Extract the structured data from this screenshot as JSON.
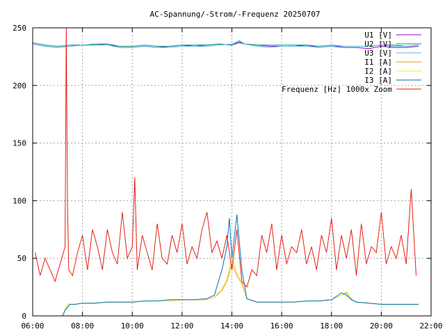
{
  "chart_data": {
    "type": "line",
    "title": "AC-Spannung/-Strom/-Frequenz 20250707",
    "xlabel": "",
    "ylabel": "",
    "x_ticks": [
      "06:00",
      "08:00",
      "10:00",
      "12:00",
      "14:00",
      "16:00",
      "18:00",
      "20:00",
      "22:00"
    ],
    "y_ticks": [
      "0",
      "50",
      "100",
      "150",
      "200",
      "250"
    ],
    "xlim_hours": [
      6,
      22
    ],
    "ylim": [
      0,
      250
    ],
    "grid": true,
    "legend_position": "top-right",
    "series": [
      {
        "name": "U1 [V]",
        "color": "#9400d3",
        "x": [
          6.0,
          6.5,
          7.0,
          7.5,
          8.0,
          8.5,
          9.0,
          9.5,
          10.0,
          10.5,
          11.0,
          11.5,
          12.0,
          12.5,
          13.0,
          13.5,
          14.0,
          14.3,
          14.5,
          15.0,
          15.5,
          16.0,
          16.5,
          17.0,
          17.5,
          18.0,
          18.5,
          19.0,
          19.5,
          20.0,
          20.5,
          21.0,
          21.5
        ],
        "values": [
          236,
          234,
          233,
          234,
          235,
          235,
          236,
          233,
          233,
          234,
          233,
          234,
          235,
          234,
          235,
          236,
          235,
          238,
          236,
          235,
          234,
          234,
          234,
          235,
          233,
          234,
          233,
          233,
          232,
          234,
          233,
          233,
          234
        ]
      },
      {
        "name": "U2 [V]",
        "color": "#009e73",
        "x": [
          6.0,
          6.5,
          7.0,
          7.5,
          8.0,
          8.5,
          9.0,
          9.5,
          10.0,
          10.5,
          11.0,
          11.5,
          12.0,
          12.5,
          13.0,
          13.5,
          14.0,
          14.3,
          14.5,
          15.0,
          15.5,
          16.0,
          16.5,
          17.0,
          17.5,
          18.0,
          18.5,
          19.0,
          19.5,
          20.0,
          20.5,
          21.0,
          21.5
        ],
        "values": [
          237,
          235,
          234,
          235,
          235,
          236,
          236,
          234,
          234,
          235,
          234,
          234,
          235,
          235,
          235,
          236,
          235,
          237,
          236,
          235,
          235,
          235,
          235,
          235,
          234,
          235,
          234,
          234,
          234,
          235,
          235,
          234,
          235
        ]
      },
      {
        "name": "U3 [V]",
        "color": "#56b4e9",
        "x": [
          6.0,
          6.5,
          7.0,
          7.5,
          8.0,
          8.5,
          9.0,
          9.5,
          10.0,
          10.5,
          11.0,
          11.5,
          12.0,
          12.5,
          13.0,
          13.5,
          14.0,
          14.3,
          14.5,
          15.0,
          15.5,
          16.0,
          16.5,
          17.0,
          17.5,
          18.0,
          18.5,
          19.0,
          19.5,
          20.0,
          20.5,
          21.0,
          21.5
        ],
        "values": [
          236,
          234,
          233,
          234,
          235,
          235,
          235,
          233,
          233,
          234,
          233,
          233,
          234,
          234,
          234,
          235,
          236,
          239,
          236,
          234,
          233,
          234,
          234,
          234,
          233,
          234,
          234,
          234,
          234,
          235,
          234,
          234,
          235
        ]
      },
      {
        "name": "I1 [A]",
        "color": "#e69f00",
        "x": [
          7.0,
          7.2,
          7.4,
          7.5,
          7.7,
          8.0,
          8.5,
          9.0,
          9.5,
          10.0,
          10.5,
          11.0,
          11.5,
          12.0,
          12.5,
          13.0,
          13.3,
          13.6,
          13.8,
          14.0,
          14.2,
          14.4,
          14.6,
          15.0,
          15.5,
          16.0,
          16.5,
          17.0,
          17.5,
          18.0,
          18.4,
          18.6,
          18.8,
          19.0,
          19.5,
          20.0,
          20.5,
          21.0,
          21.5
        ],
        "values": [
          0,
          0,
          10,
          10,
          10,
          11,
          11,
          12,
          12,
          12,
          13,
          13,
          13,
          14,
          14,
          14,
          16,
          22,
          30,
          45,
          35,
          28,
          15,
          12,
          12,
          12,
          12,
          13,
          13,
          14,
          18,
          20,
          15,
          12,
          11,
          10,
          10,
          10,
          10
        ]
      },
      {
        "name": "I2 [A]",
        "color": "#f0e442",
        "x": [
          7.0,
          7.2,
          7.4,
          7.5,
          7.7,
          8.0,
          8.5,
          9.0,
          9.5,
          10.0,
          10.5,
          11.0,
          11.5,
          12.0,
          12.5,
          13.0,
          13.3,
          13.6,
          13.8,
          14.0,
          14.2,
          14.4,
          14.6,
          15.0,
          15.5,
          16.0,
          16.5,
          17.0,
          17.5,
          18.0,
          18.4,
          18.6,
          18.8,
          19.0,
          19.5,
          20.0,
          20.5,
          21.0,
          21.5
        ],
        "values": [
          0,
          0,
          10,
          10,
          10,
          11,
          11,
          12,
          12,
          12,
          13,
          13,
          13,
          14,
          14,
          14,
          16,
          24,
          32,
          50,
          38,
          30,
          15,
          12,
          12,
          12,
          12,
          13,
          13,
          14,
          18,
          21,
          15,
          12,
          11,
          10,
          10,
          10,
          10
        ]
      },
      {
        "name": "I3 [A]",
        "color": "#0072b2",
        "x": [
          7.0,
          7.2,
          7.3,
          7.5,
          7.7,
          8.0,
          8.5,
          9.0,
          9.5,
          10.0,
          10.5,
          11.0,
          11.5,
          12.0,
          12.5,
          13.0,
          13.3,
          13.6,
          13.8,
          13.9,
          14.0,
          14.2,
          14.4,
          14.6,
          15.0,
          15.5,
          16.0,
          16.5,
          17.0,
          17.5,
          18.0,
          18.4,
          18.6,
          18.8,
          19.0,
          19.5,
          20.0,
          20.5,
          21.0,
          21.5
        ],
        "values": [
          0,
          0,
          5,
          10,
          10,
          11,
          11,
          12,
          12,
          12,
          13,
          13,
          14,
          14,
          14,
          15,
          18,
          40,
          60,
          85,
          50,
          88,
          40,
          15,
          12,
          12,
          12,
          12,
          13,
          13,
          14,
          20,
          18,
          14,
          12,
          11,
          10,
          10,
          10,
          10
        ]
      },
      {
        "name": "Frequenz [Hz] 1000x Zoom",
        "color": "#e51e10",
        "x": [
          6.1,
          6.3,
          6.5,
          6.7,
          6.9,
          7.1,
          7.3,
          7.35,
          7.4,
          7.45,
          7.6,
          7.8,
          8.0,
          8.2,
          8.4,
          8.6,
          8.8,
          9.0,
          9.2,
          9.4,
          9.6,
          9.8,
          10.0,
          10.1,
          10.2,
          10.4,
          10.6,
          10.8,
          11.0,
          11.2,
          11.4,
          11.6,
          11.8,
          12.0,
          12.2,
          12.4,
          12.6,
          12.8,
          13.0,
          13.2,
          13.4,
          13.6,
          13.8,
          14.0,
          14.2,
          14.4,
          14.6,
          14.8,
          15.0,
          15.2,
          15.4,
          15.6,
          15.8,
          16.0,
          16.2,
          16.4,
          16.6,
          16.8,
          17.0,
          17.2,
          17.4,
          17.6,
          17.8,
          18.0,
          18.2,
          18.4,
          18.6,
          18.8,
          19.0,
          19.2,
          19.4,
          19.6,
          19.8,
          20.0,
          20.2,
          20.4,
          20.6,
          20.8,
          21.0,
          21.2,
          21.4
        ],
        "values": [
          55,
          35,
          50,
          40,
          30,
          45,
          60,
          250,
          95,
          40,
          35,
          55,
          70,
          40,
          75,
          60,
          40,
          75,
          55,
          45,
          90,
          50,
          60,
          120,
          40,
          70,
          55,
          40,
          80,
          50,
          45,
          70,
          55,
          80,
          45,
          60,
          50,
          75,
          90,
          55,
          65,
          50,
          70,
          40,
          75,
          30,
          25,
          40,
          35,
          70,
          55,
          80,
          40,
          70,
          45,
          60,
          55,
          75,
          45,
          60,
          40,
          70,
          55,
          85,
          40,
          70,
          50,
          75,
          35,
          80,
          45,
          60,
          55,
          90,
          45,
          60,
          50,
          70,
          45,
          110,
          35
        ]
      }
    ]
  }
}
